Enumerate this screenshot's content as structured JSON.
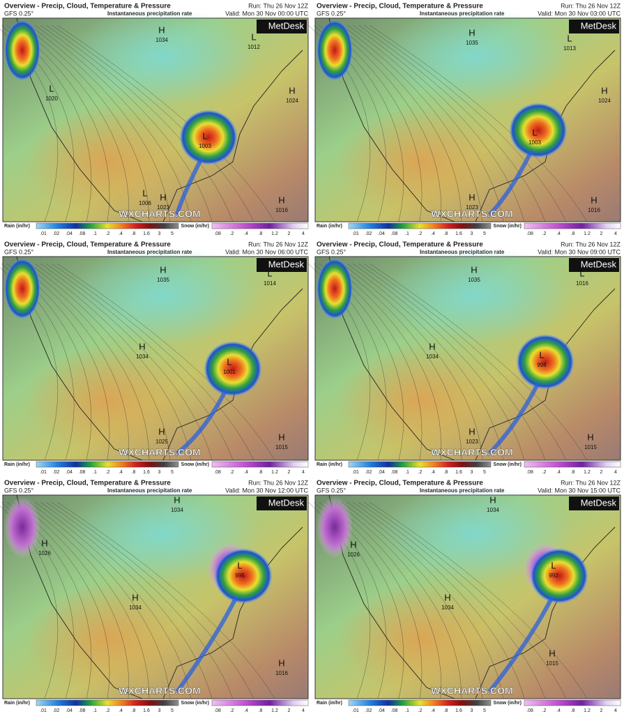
{
  "panels": [
    {
      "title": "Overview - Precip, Cloud, Temperature & Pressure",
      "model": "GFS 0.25°",
      "subtitle": "Instantaneous precipitation rate",
      "run": "Run: Thu 26 Nov 12Z",
      "valid": "Valid: Mon 30 Nov 00:00 UTC",
      "logo": "MetDesk",
      "watermark": "WXCHARTS.COM",
      "centers": [
        {
          "type": "H",
          "value": "1034"
        },
        {
          "type": "L",
          "value": "1012"
        },
        {
          "type": "L",
          "value": "1020"
        },
        {
          "type": "H",
          "value": "1024"
        },
        {
          "type": "L",
          "value": "1003"
        },
        {
          "type": "L",
          "value": "1006"
        },
        {
          "type": "H",
          "value": "1023"
        },
        {
          "type": "H",
          "value": "1016"
        }
      ],
      "rain_label": "Rain (in/hr)",
      "rain_scale": [
        ".01",
        ".02",
        ".04",
        ".08",
        ".1",
        ".2",
        ".4",
        ".8",
        "1.6",
        "3",
        "5"
      ],
      "snow_label": "Snow (in/hr)",
      "snow_scale": [
        ".08",
        ".2",
        ".4",
        ".8",
        "1.2",
        "2",
        "4"
      ]
    },
    {
      "title": "Overview - Precip, Cloud, Temperature & Pressure",
      "model": "GFS 0.25°",
      "subtitle": "Instantaneous precipitation rate",
      "run": "Run: Thu 26 Nov 12Z",
      "valid": "Valid: Mon 30 Nov 03:00 UTC",
      "logo": "MetDesk",
      "watermark": "WXCHARTS.COM",
      "centers": [
        {
          "type": "H",
          "value": "1035"
        },
        {
          "type": "L",
          "value": "1013"
        },
        {
          "type": "H",
          "value": "1024"
        },
        {
          "type": "L",
          "value": "1003"
        },
        {
          "type": "H",
          "value": "1023"
        },
        {
          "type": "H",
          "value": "1016"
        }
      ],
      "rain_label": "Rain (in/hr)",
      "rain_scale": [
        ".01",
        ".02",
        ".04",
        ".08",
        ".1",
        ".2",
        ".4",
        ".8",
        "1.6",
        "3",
        "5"
      ],
      "snow_label": "Snow (in/hr)",
      "snow_scale": [
        ".08",
        ".2",
        ".4",
        ".8",
        "1.2",
        "2",
        "4"
      ]
    },
    {
      "title": "Overview - Precip, Cloud, Temperature & Pressure",
      "model": "GFS 0.25°",
      "subtitle": "Instantaneous precipitation rate",
      "run": "Run: Thu 26 Nov 12Z",
      "valid": "Valid: Mon 30 Nov 06:00 UTC",
      "logo": "MetDesk",
      "watermark": "WXCHARTS.COM",
      "centers": [
        {
          "type": "H",
          "value": "1035"
        },
        {
          "type": "L",
          "value": "1014"
        },
        {
          "type": "H",
          "value": "1034"
        },
        {
          "type": "L",
          "value": "1001"
        },
        {
          "type": "H",
          "value": "1025"
        },
        {
          "type": "H",
          "value": "1015"
        }
      ],
      "rain_label": "Rain (in/hr)",
      "rain_scale": [
        ".01",
        ".02",
        ".04",
        ".08",
        ".1",
        ".2",
        ".4",
        ".8",
        "1.6",
        "3",
        "5"
      ],
      "snow_label": "Snow (in/hr)",
      "snow_scale": [
        ".08",
        ".2",
        ".4",
        ".8",
        "1.2",
        "2",
        "4"
      ]
    },
    {
      "title": "Overview - Precip, Cloud, Temperature & Pressure",
      "model": "GFS 0.25°",
      "subtitle": "Instantaneous precipitation rate",
      "run": "Run: Thu 26 Nov 12Z",
      "valid": "Valid: Mon 30 Nov 09:00 UTC",
      "logo": "MetDesk",
      "watermark": "WXCHARTS.COM",
      "centers": [
        {
          "type": "H",
          "value": "1035"
        },
        {
          "type": "L",
          "value": "1016"
        },
        {
          "type": "H",
          "value": "1034"
        },
        {
          "type": "L",
          "value": "998"
        },
        {
          "type": "H",
          "value": "1023"
        },
        {
          "type": "H",
          "value": "1015"
        }
      ],
      "rain_label": "Rain (in/hr)",
      "rain_scale": [
        ".01",
        ".02",
        ".04",
        ".08",
        ".1",
        ".2",
        ".4",
        ".8",
        "1.6",
        "3",
        "5"
      ],
      "snow_label": "Snow (in/hr)",
      "snow_scale": [
        ".08",
        ".2",
        ".4",
        ".8",
        "1.2",
        "2",
        "4"
      ]
    },
    {
      "title": "Overview - Precip, Cloud, Temperature & Pressure",
      "model": "GFS 0.25°",
      "subtitle": "Instantaneous precipitation rate",
      "run": "Run: Thu 26 Nov 12Z",
      "valid": "Valid: Mon 30 Nov 12:00 UTC",
      "logo": "MetDesk",
      "watermark": "WXCHARTS.COM",
      "centers": [
        {
          "type": "H",
          "value": "1034"
        },
        {
          "type": "H",
          "value": "1026"
        },
        {
          "type": "L",
          "value": "995"
        },
        {
          "type": "H",
          "value": "1034"
        },
        {
          "type": "H",
          "value": "1016"
        }
      ],
      "rain_label": "Rain (in/hr)",
      "rain_scale": [
        ".01",
        ".02",
        ".04",
        ".08",
        ".1",
        ".2",
        ".4",
        ".8",
        "1.6",
        "3",
        "5"
      ],
      "snow_label": "Snow (in/hr)",
      "snow_scale": [
        ".08",
        ".2",
        ".4",
        ".8",
        "1.2",
        "2",
        "4"
      ]
    },
    {
      "title": "Overview - Precip, Cloud, Temperature & Pressure",
      "model": "GFS 0.25°",
      "subtitle": "Instantaneous precipitation rate",
      "run": "Run: Thu 26 Nov 12Z",
      "valid": "Valid: Mon 30 Nov 15:00 UTC",
      "logo": "MetDesk",
      "watermark": "WXCHARTS.COM",
      "centers": [
        {
          "type": "H",
          "value": "1034"
        },
        {
          "type": "H",
          "value": "1026"
        },
        {
          "type": "L",
          "value": "992"
        },
        {
          "type": "H",
          "value": "1034"
        },
        {
          "type": "H",
          "value": "1015"
        }
      ],
      "rain_label": "Rain (in/hr)",
      "rain_scale": [
        ".01",
        ".02",
        ".04",
        ".08",
        ".1",
        ".2",
        ".4",
        ".8",
        "1.6",
        "3",
        "5"
      ],
      "snow_label": "Snow (in/hr)",
      "snow_scale": [
        ".08",
        ".2",
        ".4",
        ".8",
        "1.2",
        "2",
        "4"
      ]
    }
  ]
}
